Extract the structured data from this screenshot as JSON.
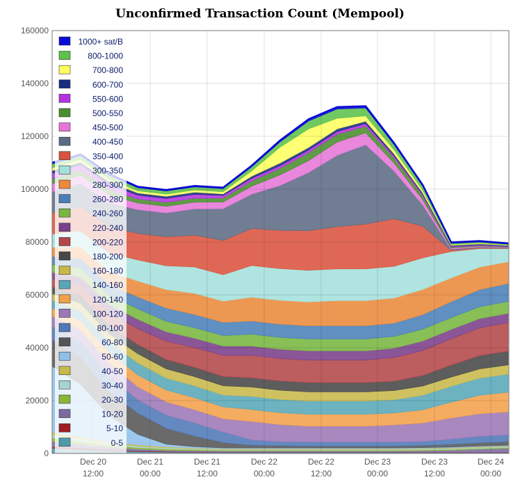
{
  "chart_data": {
    "type": "area",
    "title": "Unconfirmed Transaction Count (Mempool)",
    "stacked": true,
    "ylim": [
      0,
      160000
    ],
    "yticks": [
      "0",
      "20000",
      "40000",
      "60000",
      "80000",
      "100000",
      "120000",
      "140000",
      "160000"
    ],
    "xticks": [
      {
        "line1": "Dec 20",
        "line2": "12:00"
      },
      {
        "line1": "Dec 21",
        "line2": "00:00"
      },
      {
        "line1": "Dec 21",
        "line2": "12:00"
      },
      {
        "line1": "Dec 22",
        "line2": "00:00"
      },
      {
        "line1": "Dec 22",
        "line2": "12:00"
      },
      {
        "line1": "Dec 23",
        "line2": "00:00"
      },
      {
        "line1": "Dec 23",
        "line2": "12:00"
      },
      {
        "line1": "Dec 24",
        "line2": "00:00"
      }
    ],
    "x": [
      "Dec 20 06:00",
      "Dec 20 12:00",
      "Dec 20 18:00",
      "Dec 21 00:00",
      "Dec 21 06:00",
      "Dec 21 12:00",
      "Dec 21 18:00",
      "Dec 22 00:00",
      "Dec 22 06:00",
      "Dec 22 12:00",
      "Dec 22 18:00",
      "Dec 23 00:00",
      "Dec 23 06:00",
      "Dec 23 12:00",
      "Dec 23 18:00",
      "Dec 24 00:00",
      "Dec 24 03:00"
    ],
    "grid": true,
    "legend_position": "top-left",
    "series": [
      {
        "name": "0-5",
        "color": "#4f9aa8",
        "values": [
          2000,
          1500,
          1000,
          700,
          500,
          400,
          300,
          300,
          300,
          300,
          300,
          300,
          300,
          300,
          300,
          300,
          300
        ]
      },
      {
        "name": "5-10",
        "color": "#a01e22",
        "values": [
          500,
          400,
          300,
          250,
          200,
          150,
          100,
          100,
          100,
          100,
          100,
          100,
          100,
          100,
          100,
          100,
          100
        ]
      },
      {
        "name": "10-20",
        "color": "#7c6aa0",
        "values": [
          2000,
          1500,
          1000,
          700,
          500,
          500,
          500,
          500,
          500,
          500,
          500,
          500,
          500,
          600,
          800,
          1200,
          1500
        ]
      },
      {
        "name": "20-30",
        "color": "#8ab634",
        "values": [
          1500,
          1200,
          800,
          600,
          500,
          400,
          300,
          300,
          300,
          300,
          300,
          300,
          300,
          300,
          300,
          300,
          300
        ]
      },
      {
        "name": "30-40",
        "color": "#a5d3d3",
        "values": [
          1000,
          800,
          600,
          500,
          400,
          300,
          300,
          300,
          300,
          300,
          300,
          300,
          300,
          300,
          300,
          300,
          300
        ]
      },
      {
        "name": "40-50",
        "color": "#c9b94a",
        "values": [
          1000,
          800,
          600,
          500,
          400,
          300,
          300,
          300,
          300,
          300,
          300,
          300,
          300,
          300,
          300,
          300,
          300
        ]
      },
      {
        "name": "50-60",
        "color": "#8fc0ea",
        "values": [
          25000,
          20000,
          10000,
          4000,
          1000,
          500,
          300,
          300,
          300,
          300,
          300,
          300,
          300,
          300,
          300,
          300,
          300
        ]
      },
      {
        "name": "60-80",
        "color": "#555555",
        "values": [
          10000,
          10000,
          9000,
          8000,
          6000,
          4000,
          2000,
          1000,
          800,
          700,
          700,
          700,
          700,
          800,
          1000,
          1200,
          1300
        ]
      },
      {
        "name": "80-100",
        "color": "#4f79b7",
        "values": [
          5000,
          6000,
          6000,
          5000,
          5000,
          5000,
          4000,
          2000,
          1500,
          1500,
          1500,
          1500,
          1500,
          1500,
          2000,
          2500,
          2600
        ]
      },
      {
        "name": "100-120",
        "color": "#9c78b6",
        "values": [
          4000,
          4500,
          5000,
          5000,
          5000,
          5000,
          5000,
          7000,
          6500,
          6000,
          6000,
          6000,
          6500,
          7000,
          8000,
          8500,
          8700
        ]
      },
      {
        "name": "120-140",
        "color": "#f2a14a",
        "values": [
          3000,
          3500,
          4000,
          4500,
          4500,
          4500,
          4500,
          4500,
          4500,
          4500,
          4500,
          4500,
          4500,
          5000,
          6000,
          7000,
          7500
        ]
      },
      {
        "name": "140-160",
        "color": "#58a7b8",
        "values": [
          3000,
          3500,
          4000,
          4500,
          4500,
          4500,
          4500,
          5000,
          5000,
          5000,
          5000,
          5000,
          5000,
          5500,
          6000,
          6500,
          6800
        ]
      },
      {
        "name": "160-180",
        "color": "#c8b84a",
        "values": [
          2500,
          3000,
          3000,
          3500,
          3500,
          3500,
          3500,
          3500,
          3500,
          3500,
          3500,
          3500,
          3500,
          3500,
          3500,
          3500,
          3500
        ]
      },
      {
        "name": "180-200",
        "color": "#474747",
        "values": [
          2500,
          3000,
          3000,
          3500,
          3500,
          3500,
          3500,
          3500,
          3500,
          3500,
          3500,
          3500,
          3500,
          4000,
          4500,
          5000,
          5200
        ]
      },
      {
        "name": "200-220",
        "color": "#b3474a",
        "values": [
          3000,
          4000,
          5000,
          6000,
          7000,
          7500,
          8000,
          8500,
          8500,
          8500,
          8500,
          8500,
          9000,
          9500,
          10000,
          10500,
          10800
        ]
      },
      {
        "name": "220-240",
        "color": "#7a3f8a",
        "values": [
          2500,
          3000,
          3000,
          3500,
          3500,
          3500,
          3500,
          3500,
          3500,
          3500,
          3500,
          3500,
          3500,
          3500,
          3500,
          3500,
          3500
        ]
      },
      {
        "name": "240-260",
        "color": "#78b640",
        "values": [
          3000,
          3500,
          3500,
          4000,
          4000,
          4000,
          4000,
          4500,
          4500,
          4500,
          4500,
          4500,
          4500,
          4500,
          4500,
          4500,
          4500
        ]
      },
      {
        "name": "260-280",
        "color": "#4a7fb8",
        "values": [
          3000,
          3500,
          4000,
          4500,
          5000,
          5000,
          5000,
          5000,
          5000,
          5000,
          5000,
          5000,
          5000,
          5500,
          6000,
          6500,
          6800
        ]
      },
      {
        "name": "280-300",
        "color": "#eb8a3a",
        "values": [
          3500,
          4500,
          5000,
          6000,
          7000,
          8000,
          8000,
          9000,
          9000,
          9000,
          9500,
          9500,
          9500,
          9500,
          9000,
          8500,
          8200
        ]
      },
      {
        "name": "300-350",
        "color": "#a4e0dc",
        "values": [
          5000,
          6000,
          7000,
          8000,
          9000,
          10000,
          10000,
          12000,
          12000,
          12000,
          12000,
          12000,
          12000,
          12000,
          10000,
          7000,
          5000
        ]
      },
      {
        "name": "350-400",
        "color": "#d9533e",
        "values": [
          8000,
          9000,
          10000,
          10000,
          11000,
          12000,
          13000,
          14000,
          14500,
          15000,
          16000,
          17000,
          18000,
          12000,
          500,
          300,
          200
        ]
      },
      {
        "name": "400-450",
        "color": "#5c6b84",
        "values": [
          8000,
          9000,
          9000,
          9000,
          9000,
          10000,
          12000,
          13000,
          17000,
          22000,
          27000,
          30000,
          18000,
          8000,
          400,
          300,
          200
        ]
      },
      {
        "name": "450-500",
        "color": "#e676d8",
        "values": [
          3000,
          3000,
          3000,
          2500,
          2500,
          2500,
          2500,
          3000,
          4000,
          4500,
          5000,
          4500,
          3000,
          2000,
          400,
          300,
          200
        ]
      },
      {
        "name": "500-550",
        "color": "#4a8d2e",
        "values": [
          2000,
          2000,
          2000,
          1500,
          1500,
          1500,
          1500,
          2000,
          2500,
          3000,
          3000,
          2500,
          2000,
          1500,
          400,
          300,
          200
        ]
      },
      {
        "name": "550-600",
        "color": "#b432e0",
        "values": [
          2000,
          2000,
          2000,
          1500,
          1500,
          1500,
          1000,
          1000,
          1000,
          1000,
          1000,
          1000,
          800,
          600,
          300,
          300,
          200
        ]
      },
      {
        "name": "600-700",
        "color": "#182c80",
        "values": [
          1000,
          1000,
          1000,
          800,
          800,
          800,
          600,
          800,
          1000,
          1000,
          1000,
          900,
          700,
          500,
          300,
          300,
          200
        ]
      },
      {
        "name": "700-800",
        "color": "#ffff60",
        "values": [
          1000,
          1000,
          1000,
          800,
          800,
          800,
          800,
          2000,
          6000,
          7000,
          4000,
          2000,
          1500,
          1000,
          300,
          300,
          200
        ]
      },
      {
        "name": "800-1000",
        "color": "#5cc24a",
        "values": [
          1500,
          1500,
          1500,
          1200,
          1200,
          1200,
          1200,
          1500,
          2000,
          3000,
          3500,
          3000,
          2000,
          1500,
          500,
          400,
          300
        ]
      },
      {
        "name": "1000+ sat/B",
        "color": "#0a0ad6",
        "values": [
          500,
          500,
          500,
          400,
          400,
          400,
          400,
          500,
          600,
          700,
          800,
          700,
          600,
          500,
          400,
          400,
          300
        ]
      }
    ]
  }
}
